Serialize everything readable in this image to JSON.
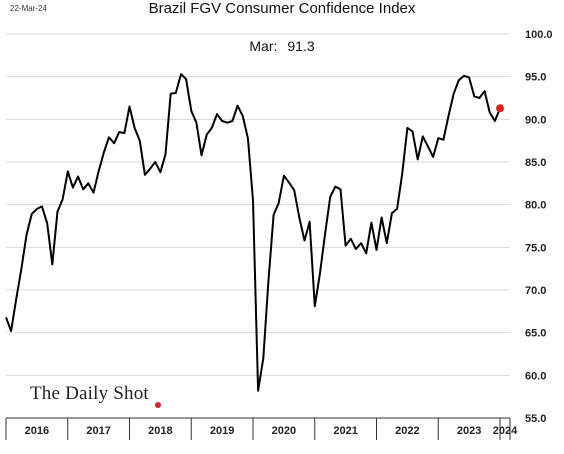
{
  "header": {
    "date": "22-Mar-24",
    "title": "Brazil FGV Consumer Confidence Index",
    "annotation_label": "Mar:",
    "annotation_value": "91.3"
  },
  "branding": {
    "logo_text": "The Daily Shot"
  },
  "colors": {
    "line": "#000000",
    "highlight": "#e02020",
    "grid": "#d9d9d9",
    "axis": "#333333"
  },
  "chart_data": {
    "type": "line",
    "title": "Brazil FGV Consumer Confidence Index",
    "xlabel": "",
    "ylabel": "",
    "ylim": [
      55,
      100
    ],
    "y_ticks": [
      "55.0",
      "60.0",
      "65.0",
      "70.0",
      "75.0",
      "80.0",
      "85.0",
      "90.0",
      "95.0",
      "100.0"
    ],
    "y_axis_position": "right",
    "x_labels": [
      "2016",
      "2017",
      "2018",
      "2019",
      "2020",
      "2021",
      "2022",
      "2023",
      "2024"
    ],
    "grid": true,
    "series": [
      {
        "values": [
          66.8,
          65.2,
          69.0,
          72.5,
          76.5,
          78.9,
          79.5,
          79.8,
          77.8,
          73.0,
          79.2,
          80.6,
          83.9,
          82.0,
          83.3,
          81.8,
          82.5,
          81.4,
          83.9,
          86.1,
          87.9,
          87.2,
          88.5,
          88.4,
          91.5,
          89.0,
          87.5,
          83.5,
          84.2,
          85.0,
          83.8,
          85.9,
          93.0,
          93.1,
          95.3,
          94.7,
          91.0,
          89.6,
          85.8,
          88.2,
          89.0,
          90.6,
          89.8,
          89.6,
          89.8,
          91.6,
          90.4,
          87.8,
          80.5,
          58.2,
          62.0,
          71.0,
          78.8,
          80.2,
          83.4,
          82.6,
          81.7,
          78.5,
          75.8,
          78.0,
          68.1,
          71.9,
          76.5,
          80.9,
          82.1,
          81.8,
          75.2,
          76.0,
          74.8,
          75.5,
          74.3,
          77.9,
          74.7,
          78.5,
          75.5,
          79.0,
          79.5,
          83.6,
          89.0,
          88.6,
          85.3,
          88.0,
          86.8,
          85.6,
          87.8,
          87.6,
          90.4,
          93.0,
          94.6,
          95.1,
          94.9,
          92.7,
          92.5,
          93.3,
          90.8,
          89.8,
          91.3
        ]
      }
    ],
    "highlight_point": {
      "label": "Mar",
      "value": 91.3
    }
  }
}
